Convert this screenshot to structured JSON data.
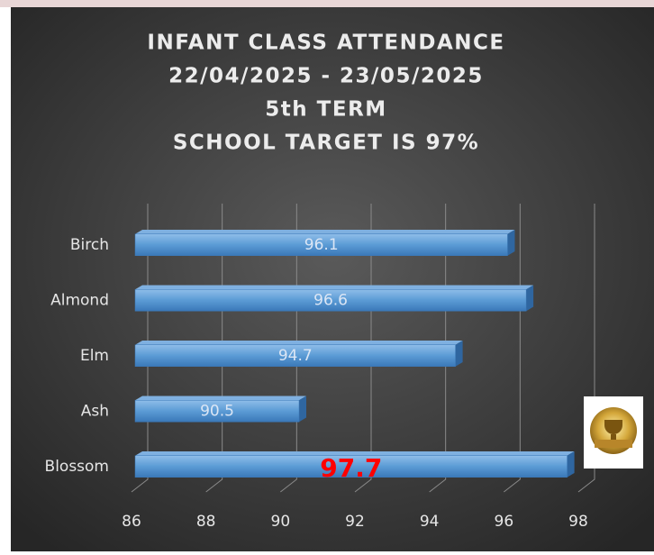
{
  "chart_data": {
    "type": "bar",
    "orientation": "horizontal",
    "title": [
      "INFANT CLASS ATTENDANCE",
      "22/04/2025 - 23/05/2025",
      "5th TERM",
      "SCHOOL TARGET IS 97%"
    ],
    "categories": [
      "Birch",
      "Almond",
      "Elm",
      "Ash",
      "Blossom"
    ],
    "values": [
      96.1,
      96.6,
      94.7,
      90.5,
      97.7
    ],
    "value_label_colors": [
      "#dbe6f5",
      "#dbe6f5",
      "#dbe6f5",
      "#dbe6f5",
      "#ff0000"
    ],
    "color": "#5b9bd5",
    "xlim": [
      86,
      98
    ],
    "xticks": [
      86,
      88,
      90,
      92,
      94,
      96,
      98
    ],
    "grid": true
  }
}
